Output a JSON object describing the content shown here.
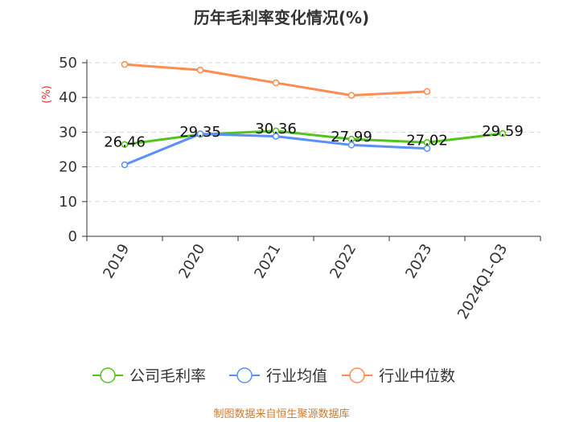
{
  "chart_data": {
    "type": "line",
    "title": "历年毛利率变化情况(%)",
    "y_unit": "(%)",
    "categories": [
      "2019",
      "2020",
      "2021",
      "2022",
      "2023",
      "2024Q1-Q3"
    ],
    "ylim": [
      0,
      50
    ],
    "y_ticks": [
      "0",
      "10",
      "20",
      "30",
      "40",
      "50"
    ],
    "grid": true,
    "legend_position": "bottom",
    "series": [
      {
        "name": "公司毛利率",
        "color": "#52c41a",
        "values": [
          26.46,
          29.35,
          30.36,
          27.99,
          27.02,
          29.59
        ],
        "labels": [
          "26.46",
          "29.35",
          "30.36",
          "27.99",
          "27.02",
          "29.59"
        ]
      },
      {
        "name": "行业均值",
        "color": "#5b8ff9",
        "values": [
          20.6,
          29.5,
          28.8,
          26.3,
          25.3,
          null
        ]
      },
      {
        "name": "行业中位数",
        "color": "#ff8c50",
        "values": [
          49.5,
          47.9,
          44.2,
          40.6,
          41.7,
          null
        ]
      }
    ]
  },
  "source": "制图数据来自恒生聚源数据库",
  "colors": {
    "title": "#333333",
    "y_unit": "#e8312f",
    "source": "#d07a2a",
    "axis": "#333333",
    "grid": "#d9d9d9"
  }
}
